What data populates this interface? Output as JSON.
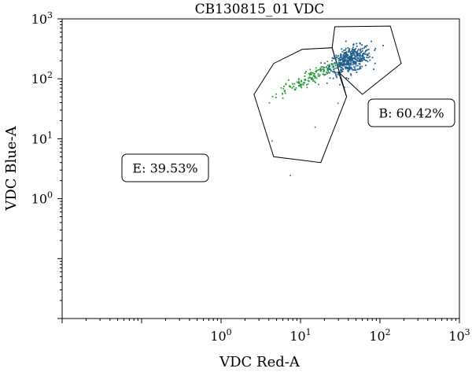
{
  "chart_data": {
    "type": "scatter",
    "title": "CB130815_01 VDC",
    "xlabel": "VDC Red-A",
    "ylabel": "VDC Blue-A",
    "xscale": "log",
    "yscale": "log",
    "xlim": [
      0.01,
      1000
    ],
    "ylim": [
      0.01,
      1000
    ],
    "x_ticks": [
      {
        "base": "10",
        "exp": "0",
        "value": 1
      },
      {
        "base": "10",
        "exp": "1",
        "value": 10
      },
      {
        "base": "10",
        "exp": "2",
        "value": 100
      },
      {
        "base": "10",
        "exp": "3",
        "value": 1000
      }
    ],
    "y_ticks": [
      {
        "base": "10",
        "exp": "0",
        "value": 1
      },
      {
        "base": "10",
        "exp": "1",
        "value": 10
      },
      {
        "base": "10",
        "exp": "2",
        "value": 100
      },
      {
        "base": "10",
        "exp": "3",
        "value": 1000
      }
    ],
    "gates": [
      {
        "label": "E: 39.53%",
        "color": "#2a9a3a",
        "polygon": [
          [
            2.6,
            55
          ],
          [
            4.6,
            180
          ],
          [
            10.5,
            310
          ],
          [
            25,
            330
          ],
          [
            38,
            50
          ],
          [
            18,
            4
          ],
          [
            4.6,
            5
          ]
        ],
        "cluster": {
          "center_log": [
            1.18,
            2.08
          ],
          "count": 170,
          "spread": 0.13
        }
      },
      {
        "label": "B: 60.42%",
        "color": "#1f5e8e",
        "polygon": [
          [
            25,
            330
          ],
          [
            27,
            740
          ],
          [
            135,
            760
          ],
          [
            185,
            180
          ],
          [
            60,
            55
          ],
          [
            30,
            130
          ],
          [
            38,
            50
          ]
        ],
        "cluster": {
          "center_log": [
            1.62,
            2.32
          ],
          "count": 420,
          "spread": 0.13
        }
      }
    ],
    "outliers": [
      [
        7.3,
        2.5
      ],
      [
        4.3,
        9.4
      ],
      [
        15,
        16
      ],
      [
        29,
        40
      ]
    ],
    "grid": false,
    "legend": "none"
  }
}
